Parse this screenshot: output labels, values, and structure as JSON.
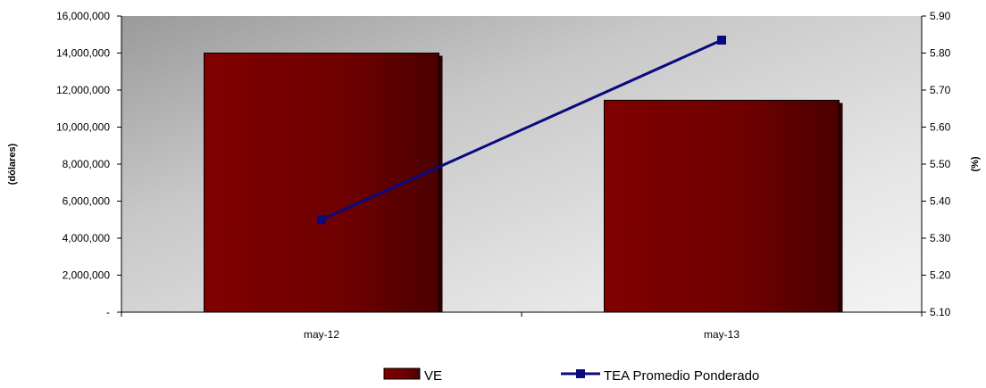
{
  "chart_data": {
    "type": "bar",
    "title": "",
    "categories": [
      "may-12",
      "may-13"
    ],
    "series": [
      {
        "name": "VE",
        "type": "bar",
        "axis": "left",
        "values": [
          14000000,
          11450000
        ],
        "color": "#7a0000"
      },
      {
        "name": "TEA Promedio Ponderado",
        "type": "line",
        "axis": "right",
        "values": [
          5.35,
          5.835
        ],
        "color": "#0a0a80"
      }
    ],
    "y_left": {
      "label": "(dólares)",
      "range": [
        0,
        16000000
      ],
      "ticks": [
        {
          "value": 0,
          "label": "-"
        },
        {
          "value": 2000000,
          "label": "2,000,000"
        },
        {
          "value": 4000000,
          "label": "4,000,000"
        },
        {
          "value": 6000000,
          "label": "6,000,000"
        },
        {
          "value": 8000000,
          "label": "8,000,000"
        },
        {
          "value": 10000000,
          "label": "10,000,000"
        },
        {
          "value": 12000000,
          "label": "12,000,000"
        },
        {
          "value": 14000000,
          "label": "14,000,000"
        },
        {
          "value": 16000000,
          "label": "16,000,000"
        }
      ]
    },
    "y_right": {
      "label": "(%)",
      "range": [
        5.1,
        5.9
      ],
      "ticks": [
        {
          "value": 5.1,
          "label": "5.10"
        },
        {
          "value": 5.2,
          "label": "5.20"
        },
        {
          "value": 5.3,
          "label": "5.30"
        },
        {
          "value": 5.4,
          "label": "5.40"
        },
        {
          "value": 5.5,
          "label": "5.50"
        },
        {
          "value": 5.6,
          "label": "5.60"
        },
        {
          "value": 5.7,
          "label": "5.70"
        },
        {
          "value": 5.8,
          "label": "5.80"
        },
        {
          "value": 5.9,
          "label": "5.90"
        }
      ]
    },
    "grid": false,
    "legend": {
      "position": "bottom",
      "items": [
        "VE",
        "TEA Promedio Ponderado"
      ]
    },
    "background": "gradient-gray"
  }
}
